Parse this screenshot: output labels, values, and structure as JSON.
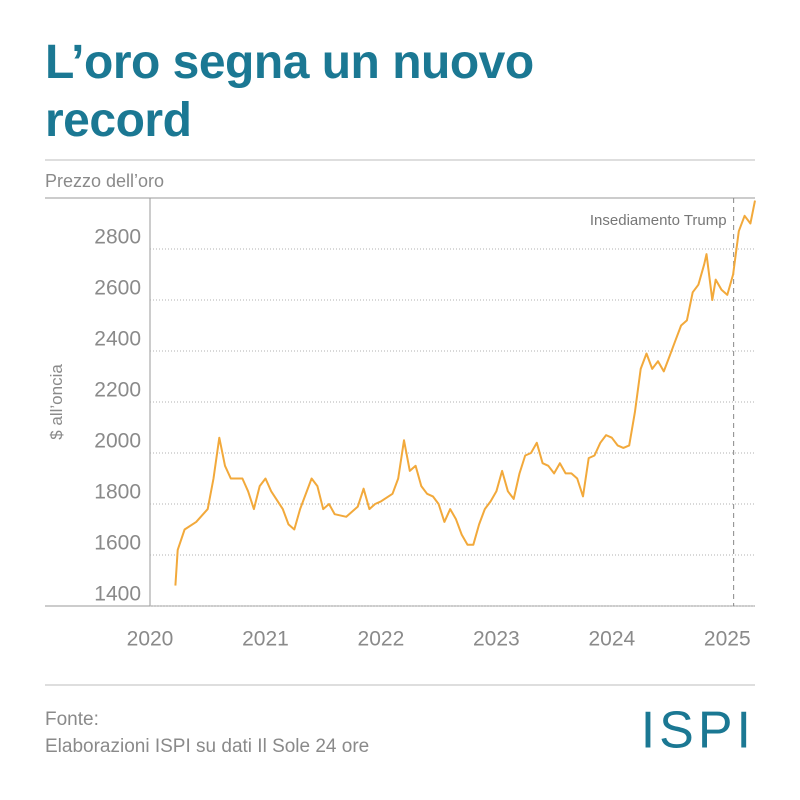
{
  "chart_data": {
    "type": "line",
    "title": "L’oro segna un nuovo record",
    "subtitle": "Prezzo dell’oro",
    "y_label": "$ all’oncia",
    "color": "#f2a93b",
    "xlim": [
      2020,
      2025.24
    ],
    "xticks": [
      2020,
      2021,
      2022,
      2023,
      2024,
      2025
    ],
    "ylim": [
      1400,
      3000
    ],
    "yticks": [
      1400,
      1600,
      1800,
      2000,
      2200,
      2400,
      2600,
      2800
    ],
    "grid": true,
    "x": [
      2020.22,
      2020.24,
      2020.3,
      2020.4,
      2020.5,
      2020.55,
      2020.6,
      2020.65,
      2020.7,
      2020.8,
      2020.85,
      2020.9,
      2020.95,
      2021.0,
      2021.05,
      2021.15,
      2021.2,
      2021.25,
      2021.3,
      2021.4,
      2021.45,
      2021.5,
      2021.55,
      2021.6,
      2021.7,
      2021.8,
      2021.85,
      2021.9,
      2021.95,
      2022.0,
      2022.1,
      2022.15,
      2022.2,
      2022.25,
      2022.3,
      2022.35,
      2022.4,
      2022.45,
      2022.5,
      2022.55,
      2022.6,
      2022.65,
      2022.7,
      2022.75,
      2022.8,
      2022.85,
      2022.9,
      2022.95,
      2023.0,
      2023.05,
      2023.1,
      2023.15,
      2023.2,
      2023.25,
      2023.3,
      2023.35,
      2023.4,
      2023.45,
      2023.5,
      2023.55,
      2023.6,
      2023.65,
      2023.7,
      2023.75,
      2023.8,
      2023.85,
      2023.9,
      2023.95,
      2024.0,
      2024.05,
      2024.1,
      2024.15,
      2024.2,
      2024.25,
      2024.3,
      2024.35,
      2024.4,
      2024.45,
      2024.5,
      2024.55,
      2024.6,
      2024.65,
      2024.7,
      2024.75,
      2024.8,
      2024.82,
      2024.87,
      2024.9,
      2024.95,
      2025.0,
      2025.05,
      2025.1,
      2025.15,
      2025.2,
      2025.24
    ],
    "values": [
      1480,
      1620,
      1700,
      1730,
      1780,
      1900,
      2060,
      1950,
      1900,
      1900,
      1850,
      1780,
      1870,
      1900,
      1850,
      1780,
      1720,
      1700,
      1780,
      1900,
      1870,
      1780,
      1800,
      1760,
      1750,
      1790,
      1860,
      1780,
      1800,
      1810,
      1840,
      1900,
      2050,
      1930,
      1950,
      1870,
      1840,
      1830,
      1800,
      1730,
      1780,
      1740,
      1680,
      1640,
      1640,
      1720,
      1780,
      1810,
      1850,
      1930,
      1850,
      1820,
      1920,
      1990,
      2000,
      2040,
      1960,
      1950,
      1920,
      1960,
      1920,
      1920,
      1900,
      1830,
      1980,
      1990,
      2040,
      2070,
      2060,
      2030,
      2020,
      2030,
      2160,
      2330,
      2390,
      2330,
      2360,
      2320,
      2380,
      2440,
      2500,
      2520,
      2630,
      2660,
      2740,
      2780,
      2600,
      2680,
      2640,
      2620,
      2700,
      2870,
      2930,
      2900,
      2990
    ],
    "annotations": [
      {
        "text": "Insediamento Trump",
        "x": 2025.055
      }
    ],
    "source_label": "Fonte:",
    "source": "Elaborazioni ISPI su dati Il Sole 24 ore",
    "logo": "ISPI"
  }
}
